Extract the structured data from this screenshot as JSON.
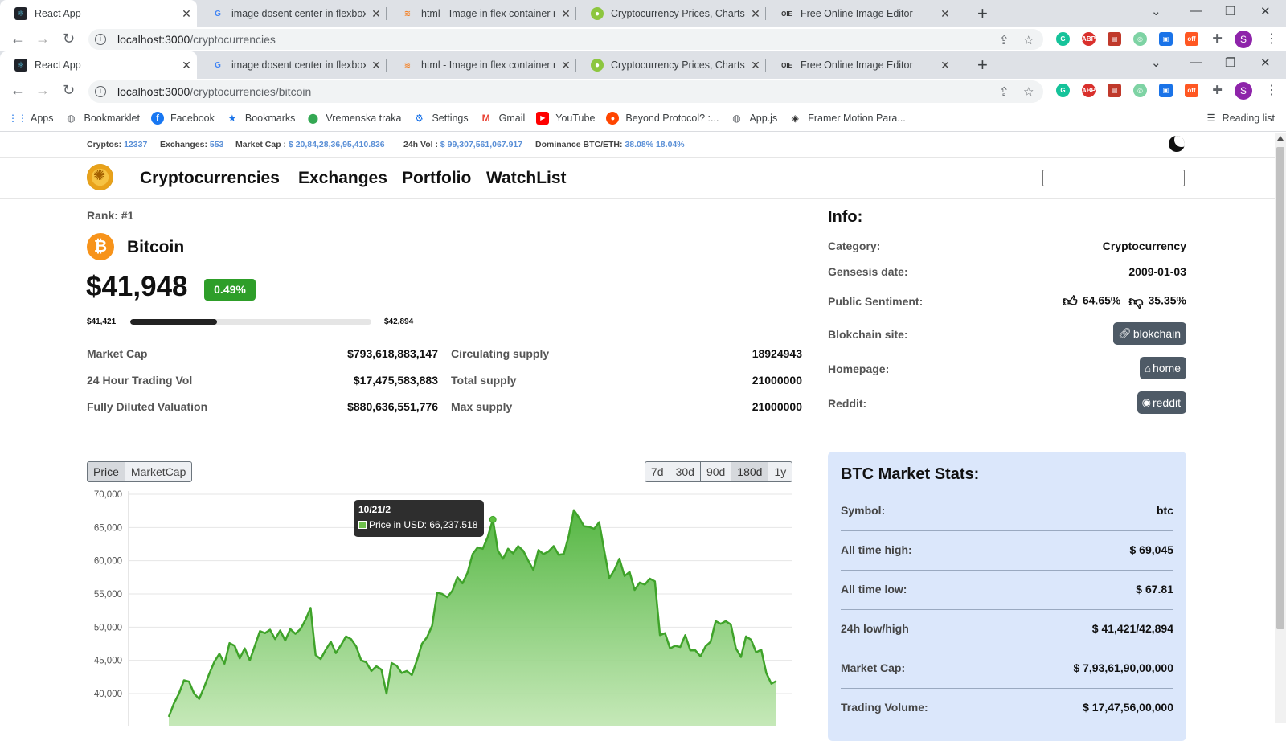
{
  "browser": {
    "tabs": [
      {
        "title": "React App",
        "favicon": "react-icon",
        "active": true
      },
      {
        "title": "image dosent center in flexbox -",
        "favicon": "google-icon"
      },
      {
        "title": "html - Image in flex container no",
        "favicon": "stackoverflow-icon"
      },
      {
        "title": "Cryptocurrency Prices, Charts, an",
        "favicon": "coingecko-icon"
      },
      {
        "title": "Free Online Image Editor",
        "favicon": "oie-icon"
      }
    ],
    "url_top": {
      "host": "localhost:3000",
      "path": "/cryptocurrencies"
    },
    "url_bottom": {
      "host": "localhost:3000",
      "path": "/cryptocurrencies/bitcoin"
    },
    "profile_initial": "S",
    "bookmarks": [
      {
        "label": "Apps",
        "icon": "apps-grid-icon"
      },
      {
        "label": "Bookmarklet",
        "icon": "globe-icon"
      },
      {
        "label": "Facebook",
        "icon": "facebook-icon"
      },
      {
        "label": "Bookmarks",
        "icon": "star-icon"
      },
      {
        "label": "Vremenska traka",
        "icon": "map-pin-icon"
      },
      {
        "label": "Settings",
        "icon": "gear-icon"
      },
      {
        "label": "Gmail",
        "icon": "gmail-icon"
      },
      {
        "label": "YouTube",
        "icon": "youtube-icon"
      },
      {
        "label": "Beyond Protocol? :...",
        "icon": "reddit-icon"
      },
      {
        "label": "App.js",
        "icon": "globe-icon"
      },
      {
        "label": "Framer Motion Para...",
        "icon": "framer-icon"
      }
    ],
    "reading_list": "Reading list"
  },
  "stats": {
    "cryptos_label": "Cryptos:",
    "cryptos": "12337",
    "exchanges_label": "Exchanges:",
    "exchanges": "553",
    "mcap_label": "Market Cap :",
    "mcap": "$ 20,84,28,36,95,410.836",
    "vol_label": "24h Vol :",
    "vol": "$ 99,307,561,067.917",
    "dom_label": "Dominance BTC/ETH:",
    "dom": "38.08% 18.04%"
  },
  "nav": {
    "links": [
      "Cryptocurrencies",
      "Exchanges",
      "Portfolio",
      "WatchList"
    ],
    "search_value": ""
  },
  "coin": {
    "rank": "Rank: #1",
    "icon_symbol": "₿",
    "name": "Bitcoin",
    "price": "$41,948",
    "change": "0.49%",
    "low": "$41,421",
    "high": "$42,894",
    "range_fill": 0.36,
    "metrics_left": [
      {
        "label": "Market Cap",
        "value": "$793,618,883,147"
      },
      {
        "label": "24 Hour Trading Vol",
        "value": "$17,475,583,883"
      },
      {
        "label": "Fully Diluted Valuation",
        "value": "$880,636,551,776"
      }
    ],
    "metrics_right": [
      {
        "label": "Circulating supply",
        "value": "18924943"
      },
      {
        "label": "Total supply",
        "value": "21000000"
      },
      {
        "label": "Max supply",
        "value": "21000000"
      }
    ]
  },
  "info": {
    "title": "Info:",
    "category_label": "Category:",
    "category": "Cryptocurrency",
    "genesis_label": "Gensesis date:",
    "genesis": "2009-01-03",
    "sentiment_label": "Public Sentiment:",
    "sentiment_up": "64.65%",
    "sentiment_down": "35.35%",
    "blockchain_label": "Blokchain site:",
    "blockchain_btn": "blokchain",
    "homepage_label": "Homepage:",
    "homepage_btn": "home",
    "reddit_label": "Reddit:",
    "reddit_btn": "reddit"
  },
  "chart_controls": {
    "metric_buttons": [
      "Price",
      "MarketCap"
    ],
    "range_buttons": [
      "7d",
      "30d",
      "90d",
      "180d",
      "1y"
    ],
    "selected_metric": "Price",
    "selected_range": "180d"
  },
  "tooltip": {
    "date": "10/21/2",
    "label": "Price in USD: 66,237.518"
  },
  "chart_data": {
    "type": "area",
    "ylim": [
      37000,
      70000
    ],
    "yticks": [
      "70,000",
      "65,000",
      "60,000",
      "55,000",
      "50,000",
      "45,000",
      "40,000"
    ],
    "ytick_values": [
      70000,
      65000,
      60000,
      55000,
      50000,
      45000,
      40000
    ],
    "series": [
      {
        "name": "Price in USD",
        "color": "#3fa32a",
        "values": [
          36500,
          38500,
          40000,
          42000,
          41800,
          40000,
          39200,
          41000,
          43000,
          44800,
          46000,
          44500,
          47600,
          47200,
          45300,
          46800,
          45000,
          47200,
          49400,
          49100,
          49600,
          48200,
          49500,
          48000,
          49700,
          49000,
          49700,
          51100,
          52900,
          45800,
          45200,
          46600,
          47800,
          46100,
          47300,
          48600,
          48200,
          47100,
          45000,
          44700,
          43400,
          44100,
          43600,
          40000,
          44600,
          44200,
          43100,
          43400,
          42800,
          45000,
          47500,
          48500,
          50200,
          55200,
          55000,
          54500,
          55500,
          57500,
          56600,
          58200,
          61000,
          62000,
          61800,
          63600,
          66200,
          61500,
          60300,
          61800,
          61100,
          62200,
          61500,
          60000,
          58600,
          61600,
          61000,
          61400,
          62200,
          60900,
          61000,
          63800,
          67600,
          66500,
          65200,
          65100,
          64800,
          65800,
          61500,
          57400,
          58600,
          60300,
          57700,
          58300,
          55600,
          56700,
          56400,
          57300,
          56900,
          48800,
          49100,
          46800,
          47200,
          47000,
          48800,
          46500,
          46500,
          45600,
          47100,
          47800,
          50900,
          50500,
          50900,
          50400,
          46800,
          45500,
          48600,
          48100,
          46200,
          46600,
          43100,
          41500,
          41900
        ]
      }
    ]
  }
}
